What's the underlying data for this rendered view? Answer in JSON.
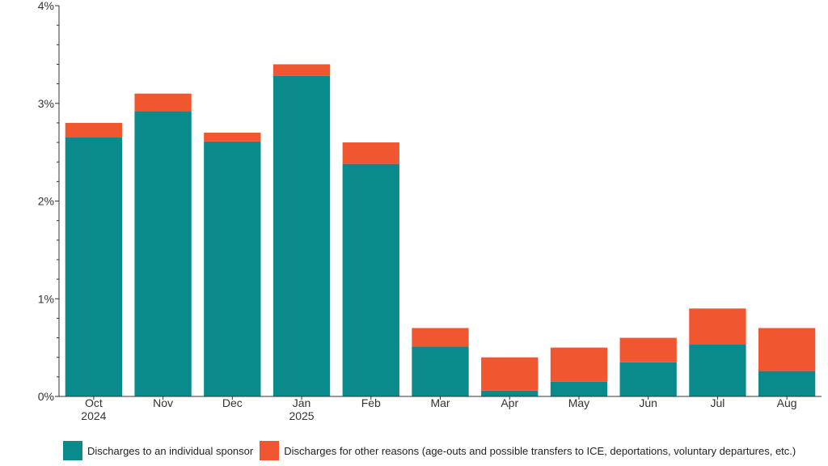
{
  "chart_data": {
    "type": "bar",
    "stacked": true,
    "categories": [
      "Oct\n2024",
      "Nov",
      "Dec",
      "Jan\n2025",
      "Feb",
      "Mar",
      "Apr",
      "May",
      "Jun",
      "Jul",
      "Aug"
    ],
    "series": [
      {
        "name": "Discharges to an individual sponsor",
        "color": "#0a8a8a",
        "values": [
          2.65,
          2.92,
          2.61,
          3.28,
          2.38,
          0.51,
          0.06,
          0.15,
          0.35,
          0.53,
          0.26
        ]
      },
      {
        "name": "Discharges for other reasons (age-outs and possible transfers to ICE, deportations, voluntary departures, etc.)",
        "color": "#f05630",
        "values": [
          0.15,
          0.18,
          0.09,
          0.12,
          0.22,
          0.19,
          0.34,
          0.35,
          0.25,
          0.37,
          0.44
        ]
      }
    ],
    "ylim": [
      0,
      4
    ],
    "yticks": [
      0,
      1,
      2,
      3,
      4
    ],
    "ytick_labels": [
      "0%",
      "1%",
      "2%",
      "3%",
      "4%"
    ],
    "minor_ticks_per_major": 5,
    "title": "",
    "xlabel": "",
    "ylabel": "",
    "grid": false,
    "legend_position": "bottom-left"
  }
}
